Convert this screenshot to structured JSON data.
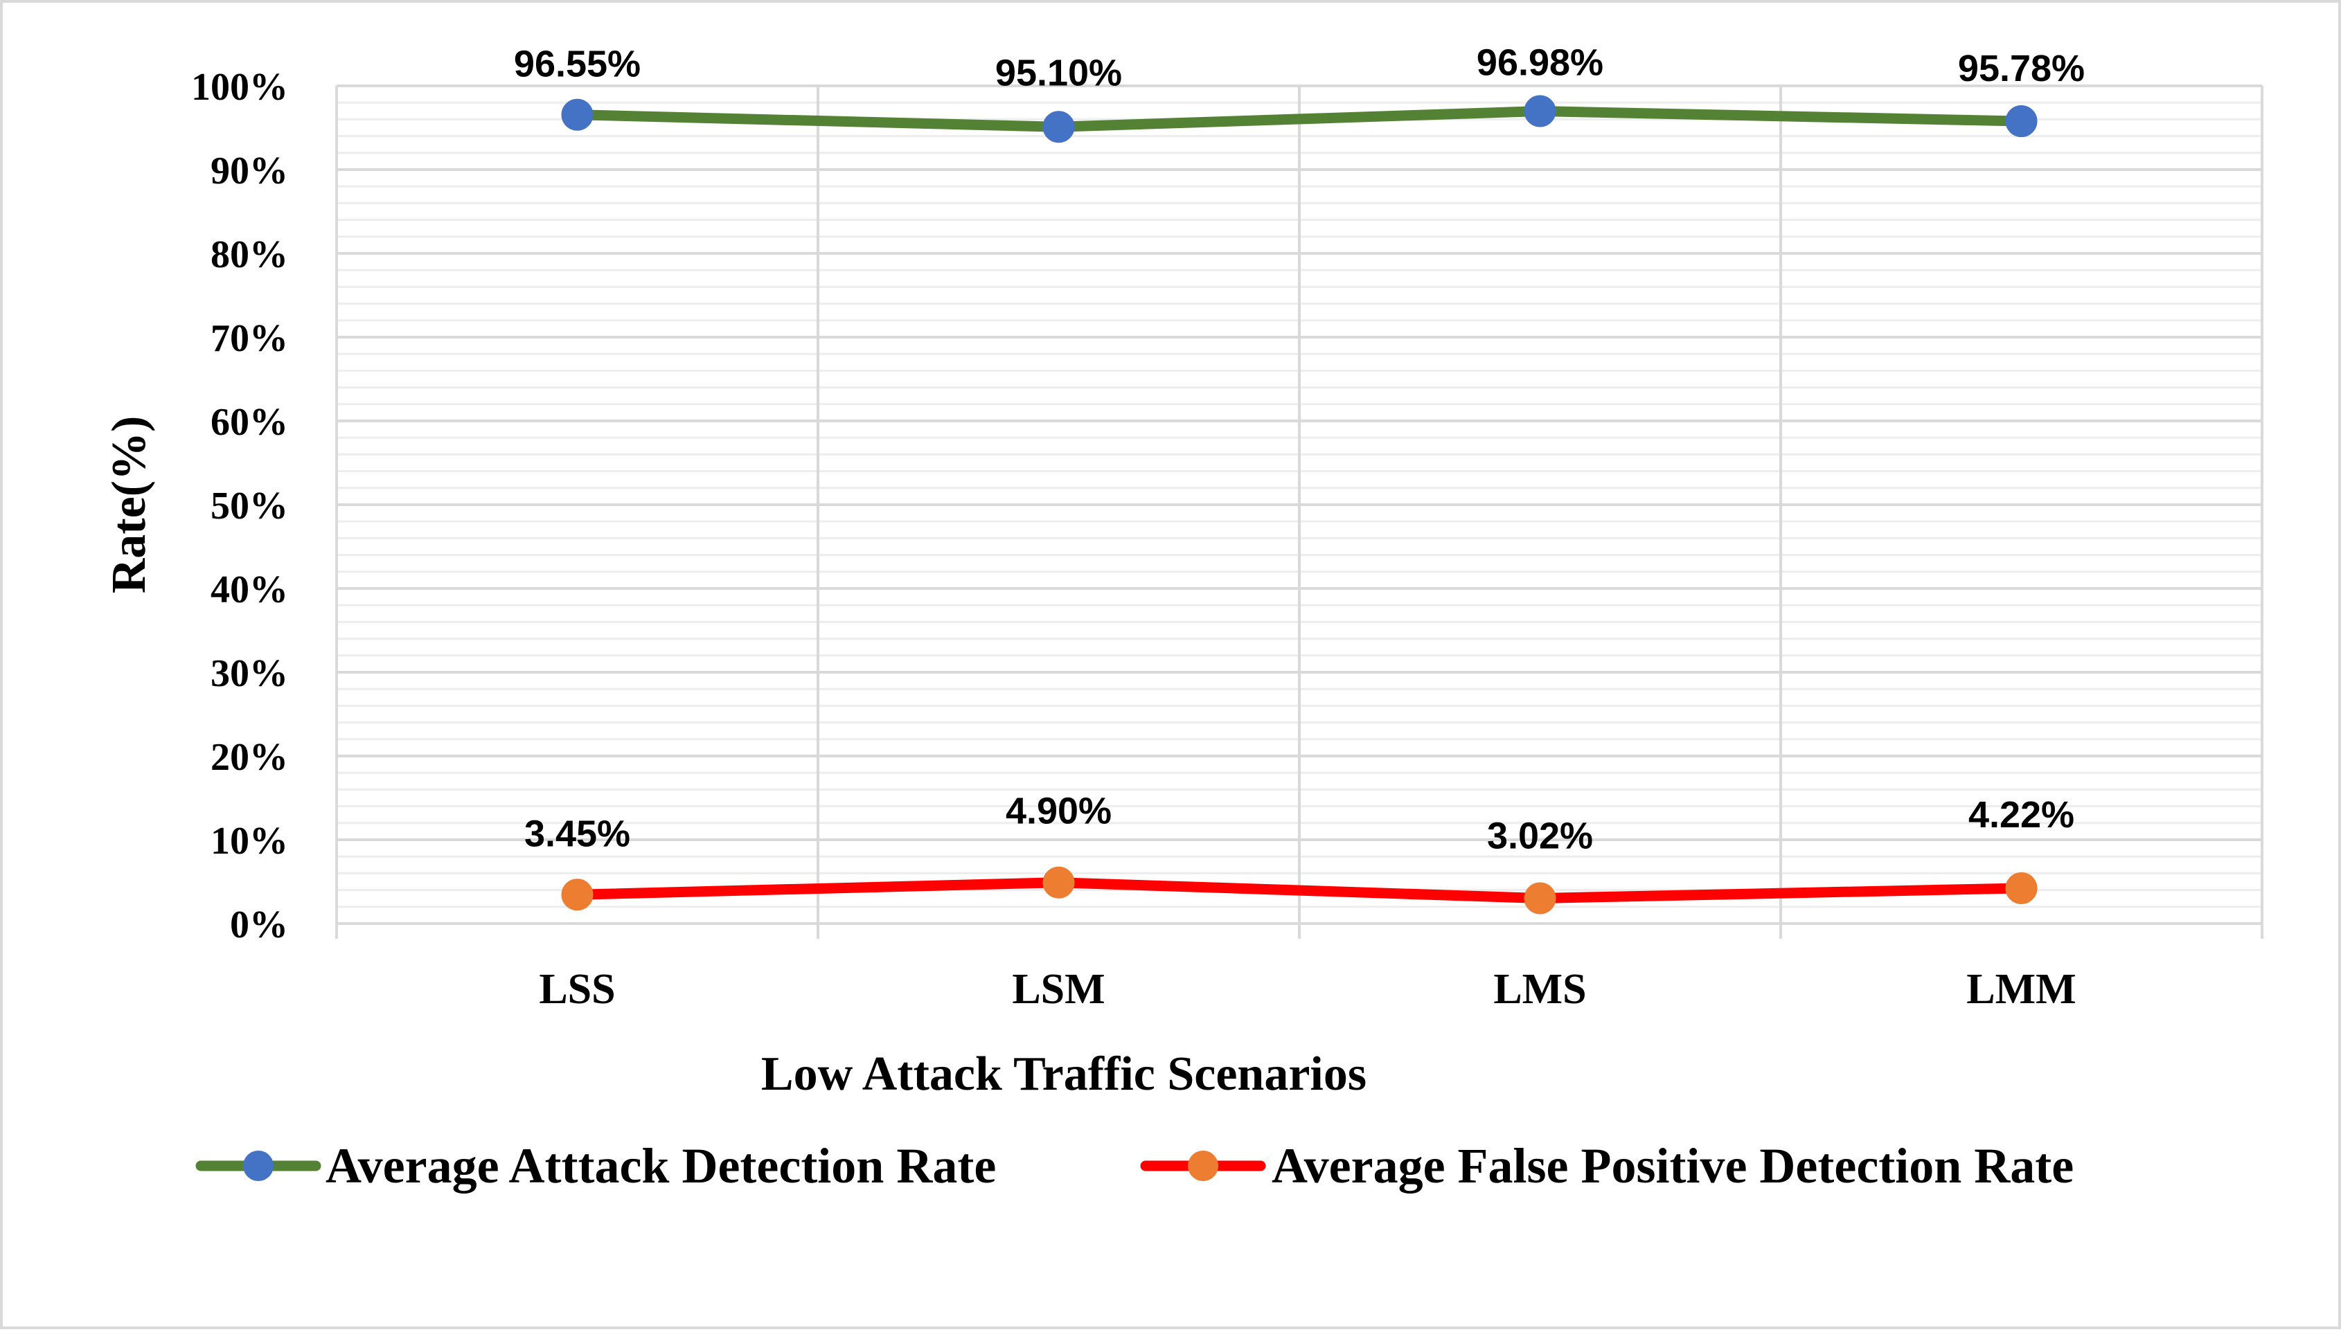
{
  "chart_data": {
    "type": "line",
    "categories": [
      "LSS",
      "LSM",
      "LMS",
      "LMM"
    ],
    "series": [
      {
        "name": "Average Atttack Detection Rate",
        "values": [
          96.55,
          95.1,
          96.98,
          95.78
        ],
        "labels": [
          "96.55%",
          "95.10%",
          "96.98%",
          "95.78%"
        ],
        "line_color": "#548235",
        "marker_color": "#4472c4"
      },
      {
        "name": "Average False Positive Detection Rate",
        "values": [
          3.45,
          4.9,
          3.02,
          4.22
        ],
        "labels": [
          "3.45%",
          "4.90%",
          "3.02%",
          "4.22%"
        ],
        "line_color": "#ff0000",
        "marker_color": "#ed7d31"
      }
    ],
    "title": "",
    "xlabel": "Low Attack Traffic Scenarios",
    "ylabel": "Rate(%)",
    "ylim": [
      0,
      100
    ],
    "yticks": [
      0,
      10,
      20,
      30,
      40,
      50,
      60,
      70,
      80,
      90,
      100
    ],
    "ytick_labels": [
      "0%",
      "10%",
      "20%",
      "30%",
      "40%",
      "50%",
      "60%",
      "70%",
      "80%",
      "90%",
      "100%"
    ],
    "grid": true,
    "legend_position": "bottom"
  }
}
